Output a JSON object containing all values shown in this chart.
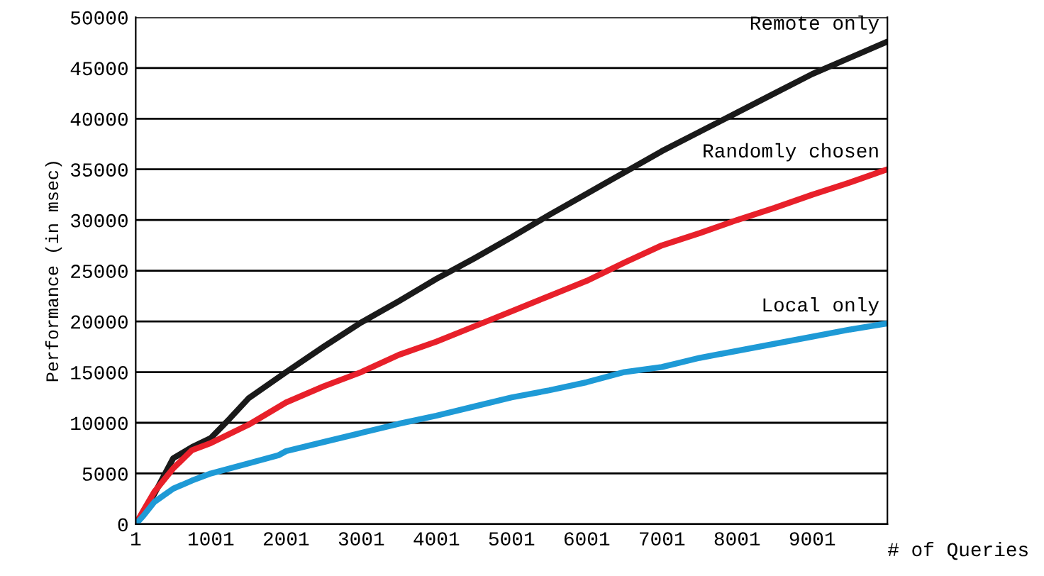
{
  "chart_data": {
    "type": "line",
    "ylabel": "Performance (in msec)",
    "xlabel": "# of Queries",
    "xlim": [
      1,
      10001
    ],
    "ylim": [
      0,
      50000
    ],
    "xticks": [
      1,
      1001,
      2001,
      3001,
      4001,
      5001,
      6001,
      7001,
      8001,
      9001
    ],
    "yticks": [
      0,
      5000,
      10000,
      15000,
      20000,
      25000,
      30000,
      35000,
      40000,
      45000,
      50000
    ],
    "grid": "y",
    "legend": false,
    "marker": "none",
    "line_style": "solid",
    "series": [
      {
        "name": "Remote only",
        "color": "#1a1a1a",
        "x": [
          1,
          100,
          250,
          500,
          750,
          1001,
          1250,
          1500,
          2001,
          2501,
          3001,
          3501,
          4001,
          4501,
          5001,
          5501,
          6001,
          6501,
          7001,
          7501,
          8001,
          8501,
          9001,
          9501,
          10001
        ],
        "values": [
          0,
          1200,
          3000,
          6500,
          7600,
          8500,
          10400,
          12400,
          15000,
          17500,
          19900,
          22000,
          24200,
          26200,
          28300,
          30500,
          32600,
          34700,
          36800,
          38700,
          40600,
          42500,
          44400,
          46000,
          47600
        ]
      },
      {
        "name": "Randomly chosen",
        "color": "#e8202a",
        "x": [
          1,
          100,
          250,
          500,
          750,
          1001,
          1501,
          2001,
          2501,
          3001,
          3501,
          4001,
          4501,
          5001,
          5501,
          6001,
          6501,
          7001,
          7501,
          8001,
          8501,
          9001,
          9501,
          10001
        ],
        "values": [
          0,
          1300,
          3200,
          5500,
          7300,
          8000,
          9800,
          12000,
          13600,
          15000,
          16700,
          18000,
          19500,
          21000,
          22500,
          24000,
          25800,
          27500,
          28700,
          30000,
          31200,
          32500,
          33700,
          35000
        ]
      },
      {
        "name": "Local only",
        "color": "#1e9ad6",
        "x": [
          1,
          100,
          250,
          500,
          750,
          1001,
          1501,
          1901,
          2001,
          2501,
          3001,
          3501,
          4001,
          4501,
          5001,
          5501,
          6001,
          6501,
          7001,
          7501,
          8001,
          8501,
          9001,
          9501,
          10001
        ],
        "values": [
          0,
          800,
          2200,
          3500,
          4300,
          5000,
          6000,
          6800,
          7200,
          8100,
          9000,
          9900,
          10700,
          11600,
          12500,
          13200,
          14000,
          15000,
          15500,
          16400,
          17100,
          17800,
          18500,
          19200,
          19800
        ]
      }
    ]
  }
}
